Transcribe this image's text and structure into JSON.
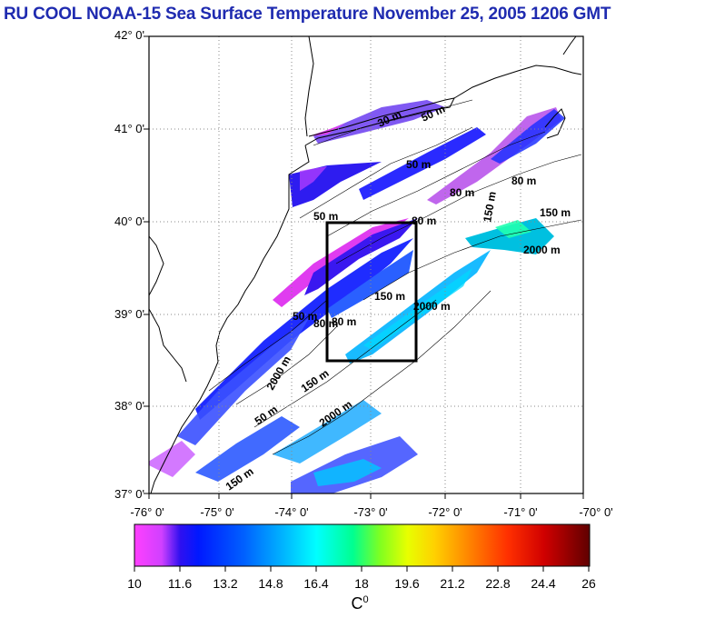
{
  "title": "RU COOL  NOAA-15 Sea Surface Temperature November 25, 2005 1206 GMT",
  "map": {
    "lat_ticks": [
      "42° 0'",
      "41° 0'",
      "40° 0'",
      "39° 0'",
      "38° 0'",
      "37° 0'"
    ],
    "lon_ticks": [
      "-76° 0'",
      "-75° 0'",
      "-74° 0'",
      "-73° 0'",
      "-72° 0'",
      "-71° 0'",
      "-70° 0'"
    ],
    "lat_range": [
      37,
      42
    ],
    "lon_range": [
      -76,
      -70
    ],
    "study_box": {
      "lon_min": -73.5,
      "lon_max": -72.5,
      "lat_min": 38.5,
      "lat_max": 40.0
    },
    "isobath_labels": [
      "50 m",
      "50 m",
      "50 m",
      "80 m",
      "80 m",
      "80 m",
      "80 m",
      "150 m",
      "150 m",
      "150 m",
      "150 m",
      "2000 m",
      "2000 m",
      "2000 m",
      "50 m",
      "80 m",
      "150 m",
      "2000 m",
      "30 m",
      "50 m"
    ]
  },
  "colorbar": {
    "ticks": [
      "10",
      "11.6",
      "13.2",
      "14.8",
      "16.4",
      "18",
      "19.6",
      "21.2",
      "22.8",
      "24.4",
      "26"
    ],
    "unit": "C",
    "unit_sup": "0",
    "min": 10,
    "max": 26,
    "colors": [
      "#ff40ff",
      "#c040ff",
      "#3a12f0",
      "#0018ff",
      "#0060ff",
      "#00b4ff",
      "#00ffff",
      "#00ff90",
      "#a0ff00",
      "#ffff00",
      "#ffa000",
      "#ff4000",
      "#e00000",
      "#600000"
    ]
  }
}
